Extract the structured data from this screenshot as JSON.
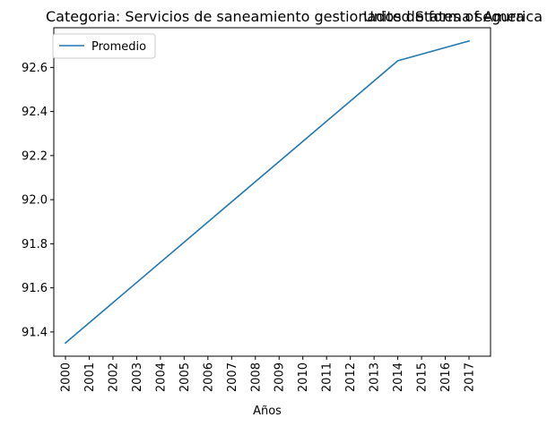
{
  "chart_data": {
    "type": "line",
    "title_left": "Categoria: Servicios de saneamiento gestionados de forma segura",
    "title_right": "United States of America",
    "xlabel": "Años",
    "ylabel": "",
    "categories": [
      "2000",
      "2001",
      "2002",
      "2003",
      "2004",
      "2005",
      "2006",
      "2007",
      "2008",
      "2009",
      "2010",
      "2011",
      "2012",
      "2013",
      "2014",
      "2015",
      "2016",
      "2017"
    ],
    "series": [
      {
        "name": "Promedio",
        "color": "#1f77b4",
        "points": [
          {
            "x": "2000",
            "y": 91.35
          },
          {
            "x": "2014",
            "y": 92.63
          },
          {
            "x": "2017",
            "y": 92.72
          }
        ]
      }
    ],
    "ylim": [
      91.29,
      92.78
    ],
    "yticks": [
      91.4,
      91.6,
      91.8,
      92.0,
      92.2,
      92.4,
      92.6
    ],
    "ytick_labels": [
      "91.4",
      "91.6",
      "91.8",
      "92.0",
      "92.2",
      "92.4",
      "92.6"
    ],
    "grid": false,
    "legend_position": "top-left"
  }
}
